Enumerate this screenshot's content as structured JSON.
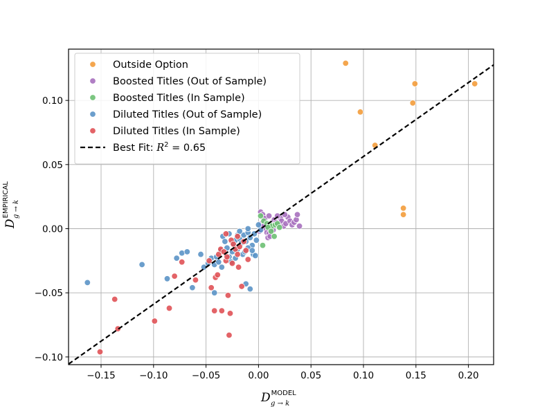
{
  "chart_data": {
    "type": "scatter",
    "xlabel": {
      "main": "D",
      "sub": "g → k",
      "sup": "MODEL"
    },
    "ylabel": {
      "main": "D",
      "sub": "g → k",
      "sup": "EMPIRICAL"
    },
    "xlim": [
      -0.181,
      0.224
    ],
    "ylim": [
      -0.106,
      0.14
    ],
    "grid": true,
    "legend_position": "top-left",
    "xticks": [
      -0.15,
      -0.1,
      -0.05,
      0.0,
      0.05,
      0.1,
      0.15,
      0.2
    ],
    "xtick_labels": [
      "−0.15",
      "−0.10",
      "−0.05",
      "0.00",
      "0.05",
      "0.10",
      "0.15",
      "0.20"
    ],
    "yticks": [
      -0.1,
      -0.05,
      0.0,
      0.05,
      0.1
    ],
    "ytick_labels": [
      "−0.10",
      "−0.05",
      "0.00",
      "0.05",
      "0.10"
    ],
    "best_fit": {
      "label": "Best Fit: R² = 0.65",
      "label_prefix": "Best Fit: ",
      "r2_text": "R",
      "r2_sup": "2",
      "r2_value": " = 0.65",
      "slope": 0.576,
      "intercept": -0.0013,
      "color": "#000000"
    },
    "series": [
      {
        "name": "Outside Option",
        "color": "#F39C3B",
        "points": [
          [
            0.083,
            0.129
          ],
          [
            0.097,
            0.091
          ],
          [
            0.111,
            0.065
          ],
          [
            0.138,
            0.016
          ],
          [
            0.138,
            0.011
          ],
          [
            0.147,
            0.098
          ],
          [
            0.149,
            0.113
          ],
          [
            0.206,
            0.113
          ]
        ]
      },
      {
        "name": "Boosted Titles (Out of Sample)",
        "color": "#A770BE",
        "points": [
          [
            0.002,
            0.013
          ],
          [
            0.004,
            0.011
          ],
          [
            0.006,
            0.008
          ],
          [
            0.003,
            0.004
          ],
          [
            0.005,
            0.002
          ],
          [
            0.007,
            0.0
          ],
          [
            0.008,
            -0.003
          ],
          [
            0.01,
            -0.004
          ],
          [
            0.012,
            0.001
          ],
          [
            0.013,
            0.004
          ],
          [
            0.015,
            0.007
          ],
          [
            0.017,
            0.005
          ],
          [
            0.019,
            0.003
          ],
          [
            0.021,
            0.008
          ],
          [
            0.022,
            0.006
          ],
          [
            0.024,
            0.002
          ],
          [
            0.026,
            0.004
          ],
          [
            0.028,
            0.009
          ],
          [
            0.03,
            0.006
          ],
          [
            0.032,
            0.003
          ],
          [
            0.034,
            0.005
          ],
          [
            0.036,
            0.007
          ],
          [
            0.037,
            0.011
          ],
          [
            0.039,
            0.002
          ],
          [
            0.01,
            0.01
          ],
          [
            0.018,
            0.01
          ],
          [
            0.025,
            0.011
          ],
          [
            0.009,
            -0.007
          ],
          [
            0.011,
            -0.006
          ],
          [
            0.001,
            -0.002
          ],
          [
            0.014,
            -0.001
          ]
        ]
      },
      {
        "name": "Boosted Titles (In Sample)",
        "color": "#6DC073",
        "points": [
          [
            0.005,
            0.006
          ],
          [
            0.008,
            0.004
          ],
          [
            0.011,
            0.003
          ],
          [
            0.013,
            0.002
          ],
          [
            0.016,
            0.003
          ],
          [
            0.018,
            0.004
          ],
          [
            0.02,
            0.001
          ],
          [
            0.015,
            -0.006
          ],
          [
            0.004,
            -0.013
          ],
          [
            0.002,
            0.01
          ],
          [
            0.009,
            0.001
          ],
          [
            0.012,
            -0.002
          ]
        ]
      },
      {
        "name": "Diluted Titles (Out of Sample)",
        "color": "#5B93C6",
        "points": [
          [
            -0.163,
            -0.042
          ],
          [
            -0.111,
            -0.028
          ],
          [
            -0.087,
            -0.039
          ],
          [
            -0.078,
            -0.023
          ],
          [
            -0.073,
            -0.019
          ],
          [
            -0.068,
            -0.018
          ],
          [
            -0.063,
            -0.046
          ],
          [
            -0.055,
            -0.02
          ],
          [
            -0.052,
            -0.03
          ],
          [
            -0.048,
            -0.027
          ],
          [
            -0.045,
            -0.023
          ],
          [
            -0.042,
            -0.028
          ],
          [
            -0.04,
            -0.022
          ],
          [
            -0.038,
            -0.026
          ],
          [
            -0.036,
            -0.017
          ],
          [
            -0.034,
            -0.006
          ],
          [
            -0.032,
            -0.01
          ],
          [
            -0.03,
            -0.015
          ],
          [
            -0.028,
            -0.022
          ],
          [
            -0.026,
            -0.026
          ],
          [
            -0.024,
            -0.012
          ],
          [
            -0.022,
            -0.009
          ],
          [
            -0.02,
            -0.005
          ],
          [
            -0.018,
            -0.008
          ],
          [
            -0.016,
            -0.011
          ],
          [
            -0.014,
            -0.005
          ],
          [
            -0.012,
            -0.01
          ],
          [
            -0.01,
            -0.003
          ],
          [
            -0.008,
            -0.007
          ],
          [
            -0.006,
            -0.013
          ],
          [
            -0.004,
            -0.004
          ],
          [
            -0.002,
            -0.009
          ],
          [
            -0.02,
            -0.016
          ],
          [
            -0.01,
            -0.015
          ],
          [
            -0.005,
            -0.02
          ],
          [
            -0.015,
            -0.02
          ],
          [
            -0.025,
            -0.018
          ],
          [
            -0.035,
            -0.03
          ],
          [
            -0.042,
            -0.05
          ],
          [
            -0.008,
            -0.047
          ],
          [
            -0.012,
            -0.043
          ],
          [
            -0.028,
            -0.004
          ],
          [
            -0.018,
            -0.002
          ],
          [
            -0.01,
            0.0
          ],
          [
            -0.006,
            -0.017
          ],
          [
            -0.003,
            -0.021
          ],
          [
            0.002,
            -0.001
          ],
          [
            0.0,
            0.003
          ],
          [
            -0.013,
            -0.018
          ],
          [
            -0.022,
            -0.023
          ]
        ]
      },
      {
        "name": "Diluted Titles (In Sample)",
        "color": "#E05257",
        "points": [
          [
            -0.151,
            -0.096
          ],
          [
            -0.137,
            -0.055
          ],
          [
            -0.134,
            -0.078
          ],
          [
            -0.099,
            -0.072
          ],
          [
            -0.085,
            -0.062
          ],
          [
            -0.08,
            -0.037
          ],
          [
            -0.073,
            -0.026
          ],
          [
            -0.06,
            -0.04
          ],
          [
            -0.047,
            -0.025
          ],
          [
            -0.045,
            -0.046
          ],
          [
            -0.042,
            -0.064
          ],
          [
            -0.041,
            -0.038
          ],
          [
            -0.039,
            -0.036
          ],
          [
            -0.038,
            -0.02
          ],
          [
            -0.036,
            -0.016
          ],
          [
            -0.035,
            -0.064
          ],
          [
            -0.033,
            -0.018
          ],
          [
            -0.031,
            -0.025
          ],
          [
            -0.03,
            -0.022
          ],
          [
            -0.028,
            -0.083
          ],
          [
            -0.027,
            -0.066
          ],
          [
            -0.026,
            -0.009
          ],
          [
            -0.024,
            -0.012
          ],
          [
            -0.022,
            -0.016
          ],
          [
            -0.02,
            -0.02
          ],
          [
            -0.018,
            -0.014
          ],
          [
            -0.016,
            -0.045
          ],
          [
            -0.014,
            -0.01
          ],
          [
            -0.012,
            -0.017
          ],
          [
            -0.025,
            -0.027
          ],
          [
            -0.031,
            -0.004
          ],
          [
            -0.029,
            -0.052
          ],
          [
            -0.019,
            -0.03
          ],
          [
            -0.01,
            -0.024
          ],
          [
            -0.02,
            -0.006
          ]
        ]
      }
    ]
  }
}
